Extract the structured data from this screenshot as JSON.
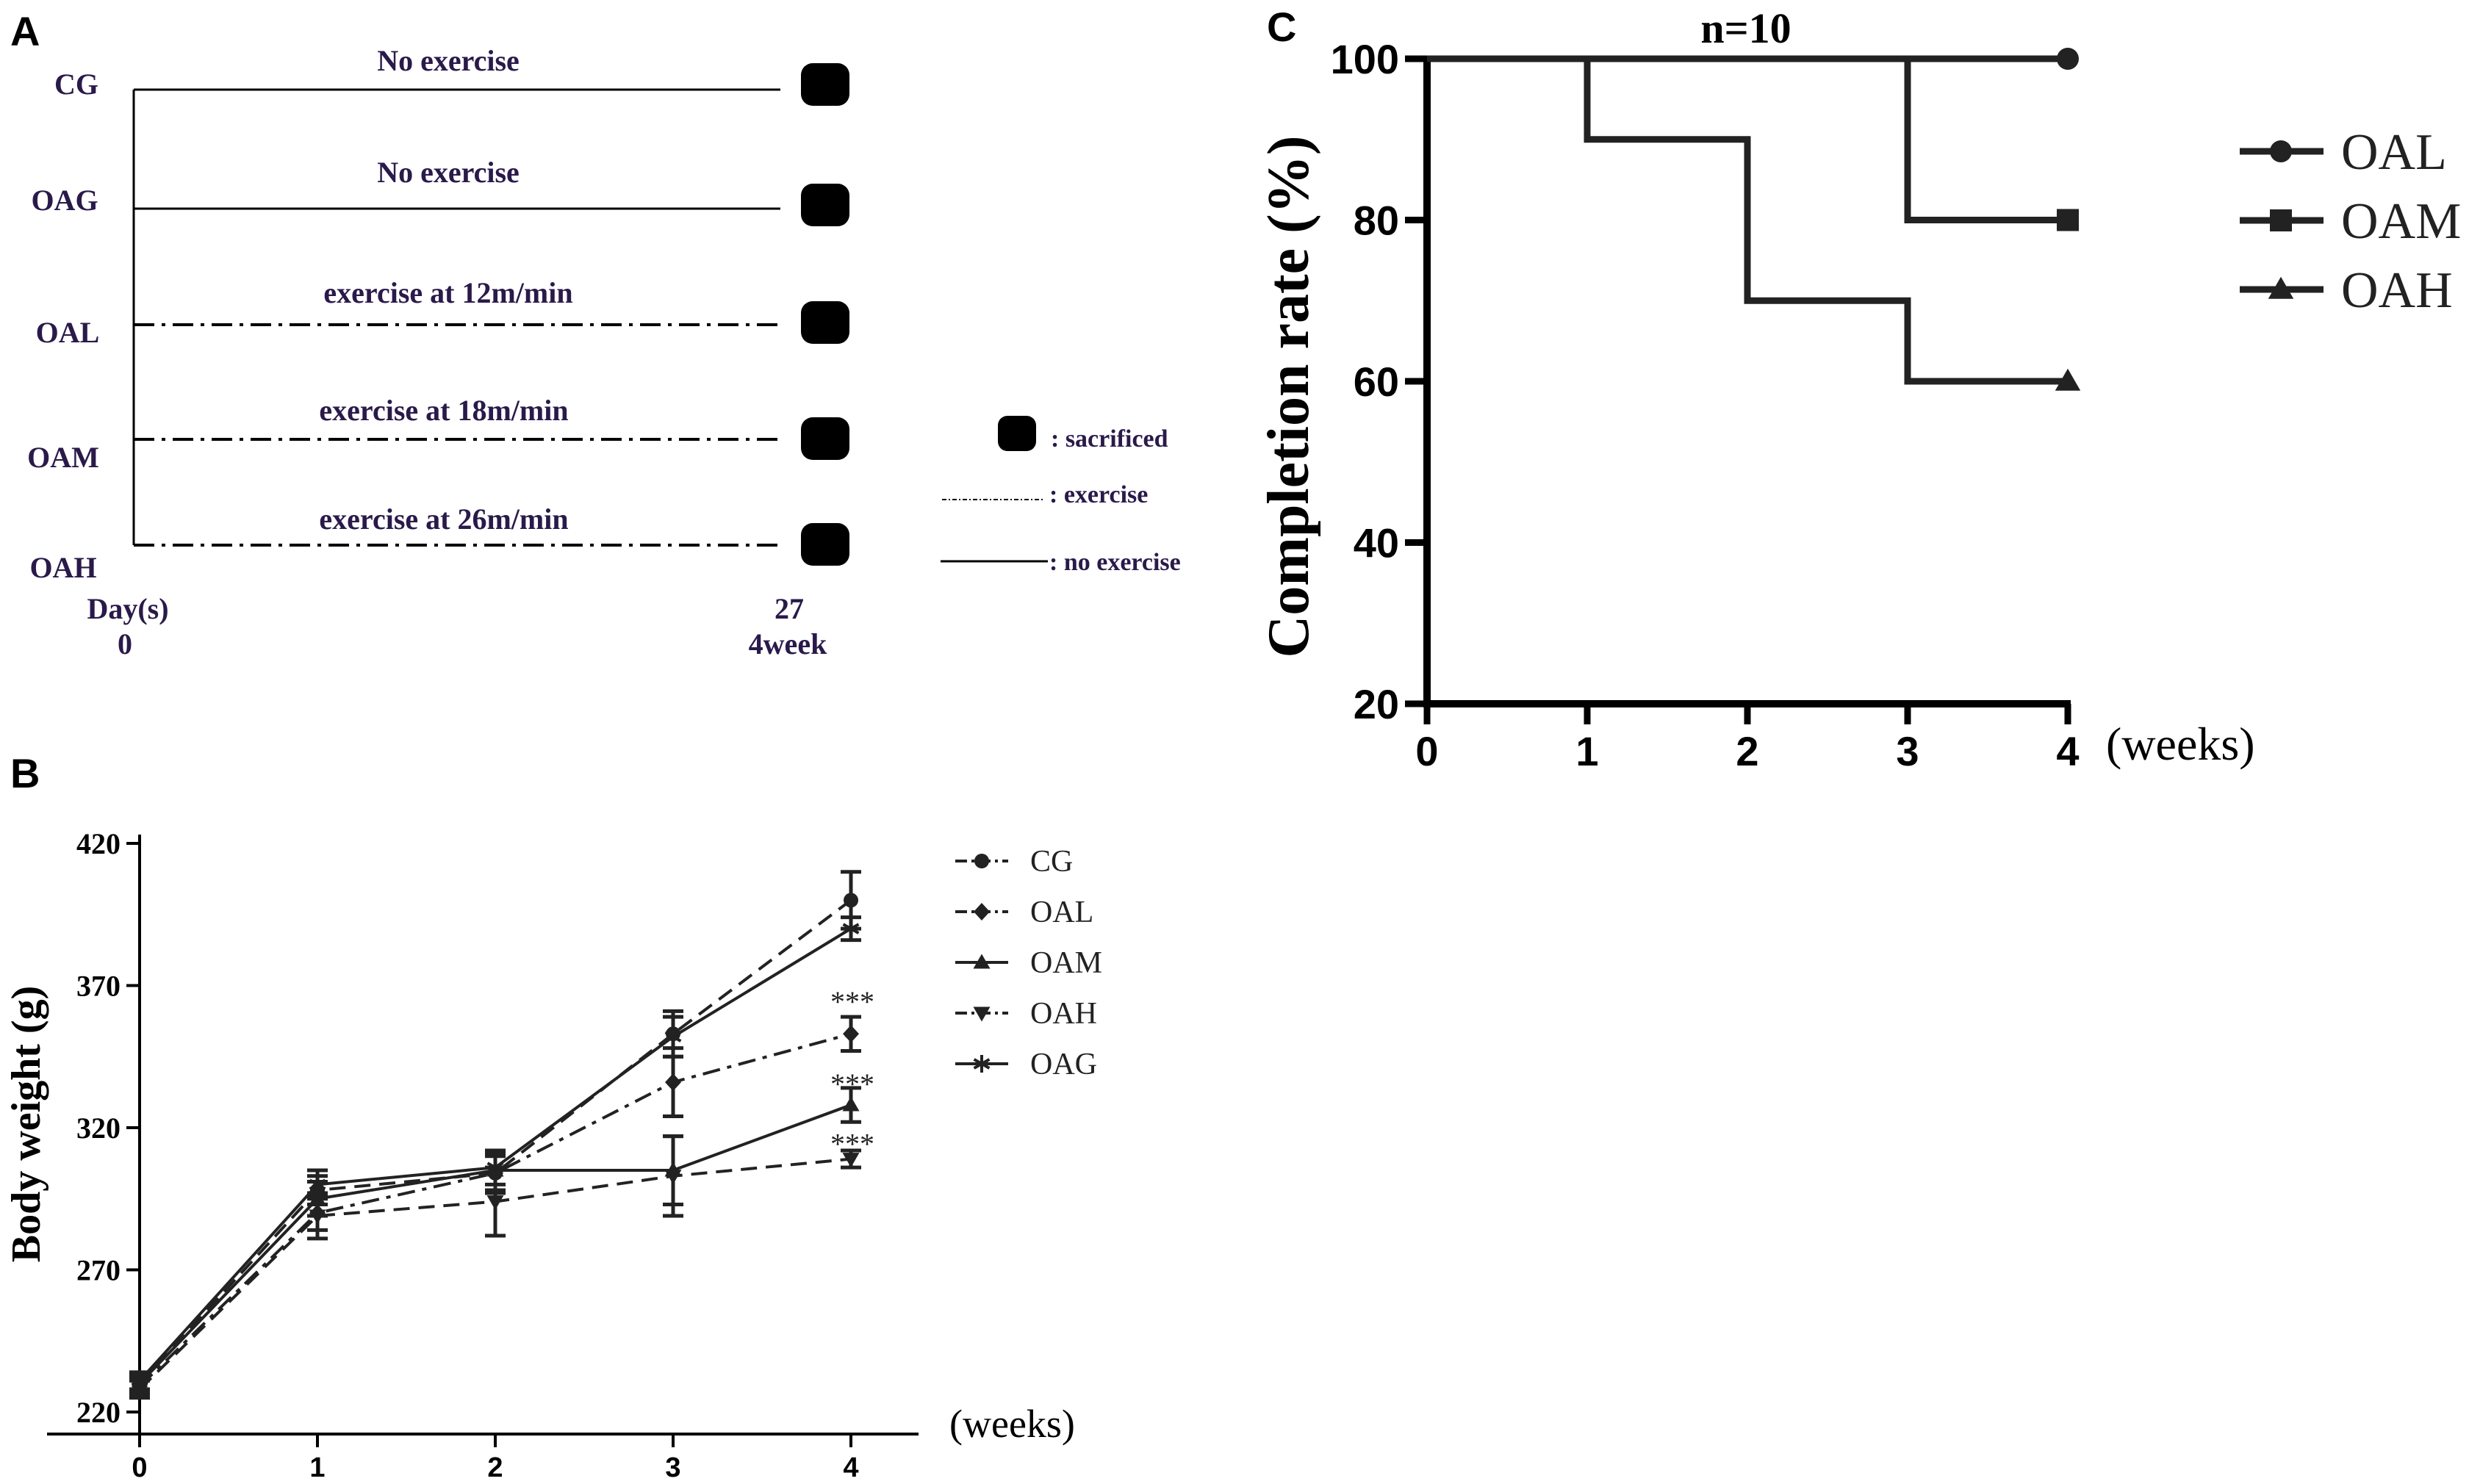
{
  "panel_a": {
    "letter": "A",
    "groups": [
      {
        "name": "CG",
        "label": "No exercise",
        "line": "solid"
      },
      {
        "name": "OAG",
        "label": "No exercise",
        "line": "solid"
      },
      {
        "name": "OAL",
        "label": "exercise at 12m/min",
        "line": "dashdot"
      },
      {
        "name": "OAM",
        "label": "exercise at 18m/min",
        "line": "dashdot"
      },
      {
        "name": "OAH",
        "label": "exercise at 26m/min",
        "line": "dashdot"
      }
    ],
    "axis_start_label": "Day(s)",
    "axis_start_value": "0",
    "axis_end_value": "27",
    "axis_end_week": "4week",
    "legend": {
      "sacrificed": ": sacrificed",
      "exercise": ": exercise",
      "no_exercise": ": no exercise"
    },
    "text_color": "#2a1a4a"
  },
  "chart_data": [
    {
      "id": "B",
      "type": "line",
      "panel_letter": "B",
      "title": "",
      "xlabel": "(weeks)",
      "ylabel": "Body weight (g)",
      "categories": [
        "0",
        "1",
        "2",
        "3",
        "4"
      ],
      "x": [
        0,
        1,
        2,
        3,
        4
      ],
      "ylim": [
        210,
        420
      ],
      "yticks": [
        220,
        270,
        320,
        370,
        420
      ],
      "series": [
        {
          "name": "CG",
          "marker": "circle",
          "dash": "dash",
          "values": [
            230,
            298,
            304,
            353,
            400
          ],
          "errors": [
            3,
            5,
            6,
            8,
            10
          ]
        },
        {
          "name": "OAL",
          "marker": "diamond",
          "dash": "dashdot",
          "values": [
            229,
            290,
            304,
            336,
            353
          ],
          "errors": [
            3,
            6,
            7,
            12,
            6
          ]
        },
        {
          "name": "OAM",
          "marker": "triangle-up",
          "dash": "solid",
          "values": [
            230,
            295,
            305,
            305,
            328
          ],
          "errors": [
            3,
            6,
            7,
            12,
            6
          ]
        },
        {
          "name": "OAH",
          "marker": "triangle-down",
          "dash": "dash",
          "values": [
            228,
            289,
            294,
            303,
            309
          ],
          "errors": [
            3,
            8,
            12,
            14,
            3
          ]
        },
        {
          "name": "OAG",
          "marker": "asterisk",
          "dash": "solid",
          "values": [
            231,
            300,
            306,
            352,
            390
          ],
          "errors": [
            3,
            5,
            6,
            7,
            4
          ]
        }
      ],
      "annotations": [
        {
          "text": "***",
          "x": 4,
          "y": 365
        },
        {
          "text": "***",
          "x": 4,
          "y": 336
        },
        {
          "text": "***",
          "x": 4,
          "y": 315
        }
      ],
      "legend_position": "right"
    },
    {
      "id": "C",
      "type": "line",
      "panel_letter": "C",
      "title": "n=10",
      "xlabel": "(weeks)",
      "ylabel": "Completion rate (%)",
      "categories": [
        "0",
        "1",
        "2",
        "3",
        "4"
      ],
      "x": [
        0,
        1,
        2,
        3,
        4
      ],
      "ylim": [
        20,
        100
      ],
      "yticks": [
        20,
        40,
        60,
        80,
        100
      ],
      "step": true,
      "series": [
        {
          "name": "OAL",
          "marker": "circle",
          "values": [
            100,
            100,
            100,
            100,
            100
          ]
        },
        {
          "name": "OAM",
          "marker": "square",
          "values": [
            100,
            100,
            100,
            80,
            80
          ]
        },
        {
          "name": "OAH",
          "marker": "triangle-up",
          "values": [
            100,
            90,
            70,
            60,
            60
          ]
        }
      ],
      "legend_position": "right"
    }
  ]
}
